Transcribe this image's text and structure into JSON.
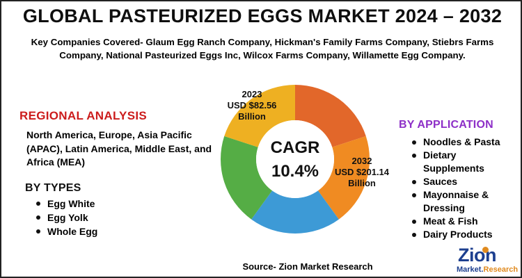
{
  "title": "GLOBAL PASTEURIZED EGGS MARKET 2024 – 2032",
  "companies_text": "Key Companies Covered- Glaum Egg Ranch Company, Hickman's Family Farms Company, Stiebrs Farms Company, National Pasteurized Eggs Inc, Wilcox Farms Company, Willamette Egg Company.",
  "regional": {
    "heading": "REGIONAL ANALYSIS",
    "text": "North America, Europe, Asia Pacific (APAC), Latin America, Middle East, and Africa (MEA)"
  },
  "types": {
    "heading": "BY TYPES",
    "items": [
      "Egg White",
      "Egg Yolk",
      "Whole Egg"
    ]
  },
  "application": {
    "heading": "BY APPLICATION",
    "items": [
      "Noodles & Pasta",
      "Dietary Supplements",
      "Sauces",
      "Mayonnaise & Dressing",
      "Meat & Fish",
      "Dairy Products"
    ]
  },
  "chart_data": {
    "type": "pie",
    "values": [
      20,
      20,
      20,
      20,
      20
    ],
    "colors": [
      "#e2672a",
      "#f08b22",
      "#3d9ad6",
      "#55ad45",
      "#eeb022"
    ],
    "center_label": [
      "CAGR",
      "10.4%"
    ],
    "annotations": [
      {
        "year": "2023",
        "value": "USD $82.56",
        "unit": "Billion"
      },
      {
        "year": "2032",
        "value": "USD $201.14",
        "unit": "Billion"
      }
    ]
  },
  "source_text": "Source- Zion Market Research",
  "logo": {
    "name": "Zion",
    "sub_a": "Market.",
    "sub_b": "Research",
    "colors": {
      "primary": "#1d3f8f",
      "accent": "#e08a1e"
    }
  }
}
